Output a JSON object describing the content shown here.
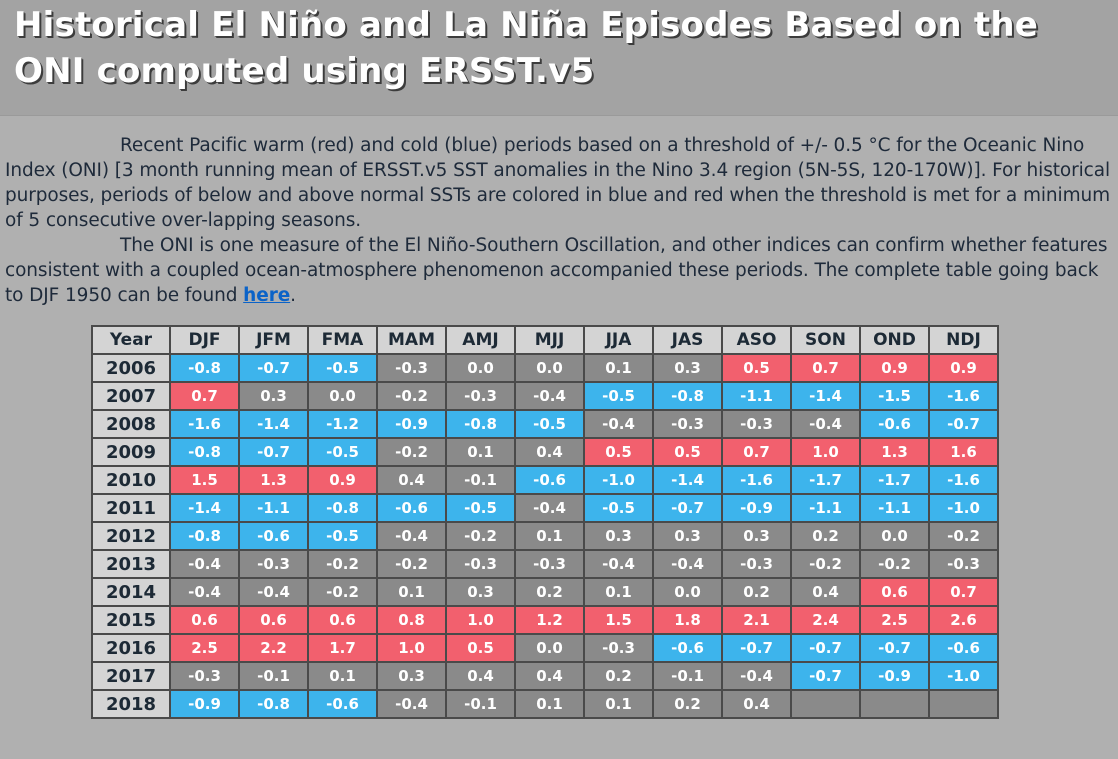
{
  "title": "Historical El Niño and La Niña Episodes Based on the ONI computed using ERSST.v5",
  "intro": {
    "p1": "Recent Pacific warm (red) and cold (blue) periods based on a threshold of +/- 0.5 °C for the Oceanic Nino Index (ONI) [3 month running mean of ERSST.v5 SST anomalies in the Nino 3.4 region (5N-5S, 120-170W)]. For historical purposes, periods of below and above normal SSTs are colored in blue and red when the threshold is met for a minimum of 5 consecutive over-lapping seasons.",
    "p2_text": "The ONI is one measure of the El Niño-Southern Oscillation, and other indices can confirm whether features consistent with a coupled ocean-atmosphere phenomenon accompanied these periods. The complete table going back to DJF 1950 can be found ",
    "p2_link": "here",
    "p2_end": "."
  },
  "colors": {
    "warm": "#f2606e",
    "cold": "#3db4ec",
    "neutral": "#8a8a8a"
  },
  "table": {
    "headers": [
      "Year",
      "DJF",
      "JFM",
      "FMA",
      "MAM",
      "AMJ",
      "MJJ",
      "JJA",
      "JAS",
      "ASO",
      "SON",
      "OND",
      "NDJ"
    ],
    "rows": [
      {
        "year": "2006",
        "values": [
          "-0.8",
          "-0.7",
          "-0.5",
          "-0.3",
          "0.0",
          "0.0",
          "0.1",
          "0.3",
          "0.5",
          "0.7",
          "0.9",
          "0.9"
        ],
        "status": [
          "c",
          "c",
          "c",
          "n",
          "n",
          "n",
          "n",
          "n",
          "w",
          "w",
          "w",
          "w"
        ]
      },
      {
        "year": "2007",
        "values": [
          "0.7",
          "0.3",
          "0.0",
          "-0.2",
          "-0.3",
          "-0.4",
          "-0.5",
          "-0.8",
          "-1.1",
          "-1.4",
          "-1.5",
          "-1.6"
        ],
        "status": [
          "w",
          "n",
          "n",
          "n",
          "n",
          "n",
          "c",
          "c",
          "c",
          "c",
          "c",
          "c"
        ]
      },
      {
        "year": "2008",
        "values": [
          "-1.6",
          "-1.4",
          "-1.2",
          "-0.9",
          "-0.8",
          "-0.5",
          "-0.4",
          "-0.3",
          "-0.3",
          "-0.4",
          "-0.6",
          "-0.7"
        ],
        "status": [
          "c",
          "c",
          "c",
          "c",
          "c",
          "c",
          "n",
          "n",
          "n",
          "n",
          "c",
          "c"
        ]
      },
      {
        "year": "2009",
        "values": [
          "-0.8",
          "-0.7",
          "-0.5",
          "-0.2",
          "0.1",
          "0.4",
          "0.5",
          "0.5",
          "0.7",
          "1.0",
          "1.3",
          "1.6"
        ],
        "status": [
          "c",
          "c",
          "c",
          "n",
          "n",
          "n",
          "w",
          "w",
          "w",
          "w",
          "w",
          "w"
        ]
      },
      {
        "year": "2010",
        "values": [
          "1.5",
          "1.3",
          "0.9",
          "0.4",
          "-0.1",
          "-0.6",
          "-1.0",
          "-1.4",
          "-1.6",
          "-1.7",
          "-1.7",
          "-1.6"
        ],
        "status": [
          "w",
          "w",
          "w",
          "n",
          "n",
          "c",
          "c",
          "c",
          "c",
          "c",
          "c",
          "c"
        ]
      },
      {
        "year": "2011",
        "values": [
          "-1.4",
          "-1.1",
          "-0.8",
          "-0.6",
          "-0.5",
          "-0.4",
          "-0.5",
          "-0.7",
          "-0.9",
          "-1.1",
          "-1.1",
          "-1.0"
        ],
        "status": [
          "c",
          "c",
          "c",
          "c",
          "c",
          "n",
          "c",
          "c",
          "c",
          "c",
          "c",
          "c"
        ]
      },
      {
        "year": "2012",
        "values": [
          "-0.8",
          "-0.6",
          "-0.5",
          "-0.4",
          "-0.2",
          "0.1",
          "0.3",
          "0.3",
          "0.3",
          "0.2",
          "0.0",
          "-0.2"
        ],
        "status": [
          "c",
          "c",
          "c",
          "n",
          "n",
          "n",
          "n",
          "n",
          "n",
          "n",
          "n",
          "n"
        ]
      },
      {
        "year": "2013",
        "values": [
          "-0.4",
          "-0.3",
          "-0.2",
          "-0.2",
          "-0.3",
          "-0.3",
          "-0.4",
          "-0.4",
          "-0.3",
          "-0.2",
          "-0.2",
          "-0.3"
        ],
        "status": [
          "n",
          "n",
          "n",
          "n",
          "n",
          "n",
          "n",
          "n",
          "n",
          "n",
          "n",
          "n"
        ]
      },
      {
        "year": "2014",
        "values": [
          "-0.4",
          "-0.4",
          "-0.2",
          "0.1",
          "0.3",
          "0.2",
          "0.1",
          "0.0",
          "0.2",
          "0.4",
          "0.6",
          "0.7"
        ],
        "status": [
          "n",
          "n",
          "n",
          "n",
          "n",
          "n",
          "n",
          "n",
          "n",
          "n",
          "w",
          "w"
        ]
      },
      {
        "year": "2015",
        "values": [
          "0.6",
          "0.6",
          "0.6",
          "0.8",
          "1.0",
          "1.2",
          "1.5",
          "1.8",
          "2.1",
          "2.4",
          "2.5",
          "2.6"
        ],
        "status": [
          "w",
          "w",
          "w",
          "w",
          "w",
          "w",
          "w",
          "w",
          "w",
          "w",
          "w",
          "w"
        ]
      },
      {
        "year": "2016",
        "values": [
          "2.5",
          "2.2",
          "1.7",
          "1.0",
          "0.5",
          "0.0",
          "-0.3",
          "-0.6",
          "-0.7",
          "-0.7",
          "-0.7",
          "-0.6"
        ],
        "status": [
          "w",
          "w",
          "w",
          "w",
          "w",
          "n",
          "n",
          "c",
          "c",
          "c",
          "c",
          "c"
        ]
      },
      {
        "year": "2017",
        "values": [
          "-0.3",
          "-0.1",
          "0.1",
          "0.3",
          "0.4",
          "0.4",
          "0.2",
          "-0.1",
          "-0.4",
          "-0.7",
          "-0.9",
          "-1.0"
        ],
        "status": [
          "n",
          "n",
          "n",
          "n",
          "n",
          "n",
          "n",
          "n",
          "n",
          "c",
          "c",
          "c"
        ]
      },
      {
        "year": "2018",
        "values": [
          "-0.9",
          "-0.8",
          "-0.6",
          "-0.4",
          "-0.1",
          "0.1",
          "0.1",
          "0.2",
          "0.4",
          "",
          "",
          ""
        ],
        "status": [
          "c",
          "c",
          "c",
          "n",
          "n",
          "n",
          "n",
          "n",
          "n",
          "e",
          "e",
          "e"
        ]
      }
    ]
  }
}
